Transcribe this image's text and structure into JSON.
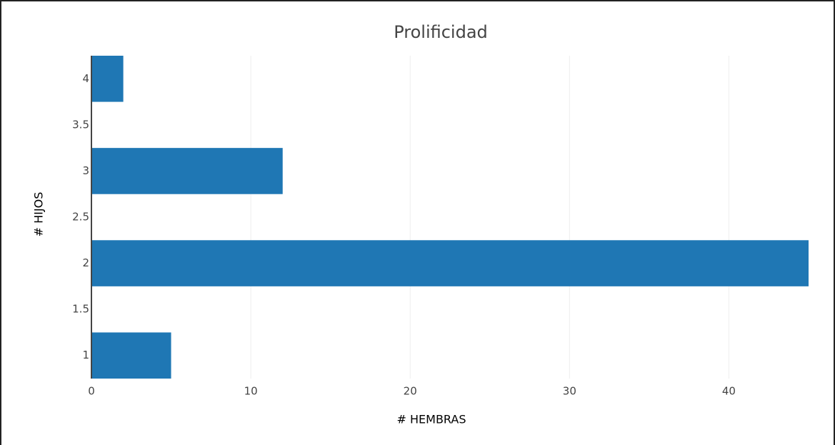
{
  "chart_data": {
    "type": "bar",
    "orientation": "horizontal",
    "title": "Prolificidad",
    "xlabel": "# HEMBRAS",
    "ylabel": "# HIJOS",
    "y": [
      1,
      2,
      3,
      4
    ],
    "values": [
      5,
      45,
      12,
      2
    ],
    "color": "#1f77b4",
    "bar_width": 0.5,
    "xlim": [
      0,
      45
    ],
    "xticks": [
      0,
      10,
      20,
      30,
      40
    ],
    "ylim": [
      0.75,
      4.25
    ],
    "yticks": [
      1,
      1.5,
      2,
      2.5,
      3,
      3.5,
      4
    ],
    "grid": true
  }
}
